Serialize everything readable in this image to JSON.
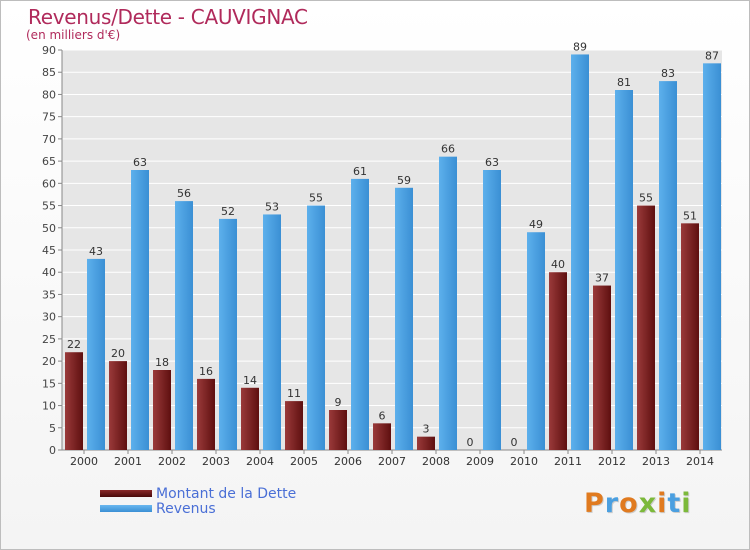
{
  "title": "Revenus/Dette - CAUVIGNAC",
  "subtitle": "(en milliers d'€)",
  "logo": "Proxiti",
  "colors": {
    "dette": "#7b1a1a",
    "revenus": "#4a9fe0",
    "title": "#b02a5b",
    "legend_text": "#4a6fd6"
  },
  "chart_data": {
    "type": "bar",
    "categories": [
      "2000",
      "2001",
      "2002",
      "2003",
      "2004",
      "2005",
      "2006",
      "2007",
      "2008",
      "2009",
      "2010",
      "2011",
      "2012",
      "2013",
      "2014"
    ],
    "series": [
      {
        "name": "Montant de la Dette",
        "values": [
          22,
          20,
          18,
          16,
          14,
          11,
          9,
          6,
          3,
          0,
          0,
          40,
          37,
          55,
          51
        ]
      },
      {
        "name": "Revenus",
        "values": [
          43,
          63,
          56,
          52,
          53,
          55,
          61,
          59,
          66,
          63,
          49,
          89,
          81,
          83,
          87
        ]
      }
    ],
    "yticks": [
      0,
      5,
      10,
      15,
      20,
      25,
      30,
      35,
      40,
      45,
      50,
      55,
      60,
      65,
      70,
      75,
      80,
      85,
      90
    ],
    "ylim": [
      0,
      90
    ],
    "grid": true,
    "legend_position": "bottom-left"
  }
}
